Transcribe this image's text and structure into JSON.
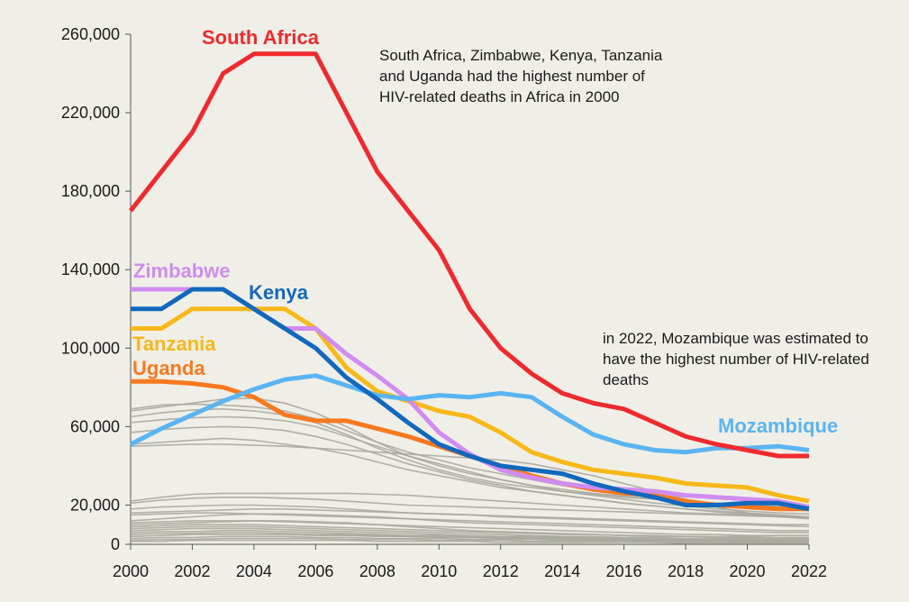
{
  "chart_data": {
    "type": "line",
    "x": [
      2000,
      2001,
      2002,
      2003,
      2004,
      2005,
      2006,
      2007,
      2008,
      2009,
      2010,
      2011,
      2012,
      2013,
      2014,
      2015,
      2016,
      2017,
      2018,
      2019,
      2020,
      2021,
      2022
    ],
    "ylim": [
      0,
      260000
    ],
    "xlim": [
      2000,
      2022
    ],
    "yticks": [
      {
        "value": 0,
        "label": "0"
      },
      {
        "value": 20000,
        "label": "20,000"
      },
      {
        "value": 60000,
        "label": "60,000"
      },
      {
        "value": 100000,
        "label": "100,000"
      },
      {
        "value": 140000,
        "label": "140,000"
      },
      {
        "value": 180000,
        "label": "180,000"
      },
      {
        "value": 220000,
        "label": "220,000"
      },
      {
        "value": 260000,
        "label": "260,000"
      }
    ],
    "xticks": [
      {
        "value": 2000,
        "label": "2000"
      },
      {
        "value": 2002,
        "label": "2002"
      },
      {
        "value": 2004,
        "label": "2004"
      },
      {
        "value": 2006,
        "label": "2006"
      },
      {
        "value": 2008,
        "label": "2008"
      },
      {
        "value": 2010,
        "label": "2010"
      },
      {
        "value": 2012,
        "label": "2012"
      },
      {
        "value": 2014,
        "label": "2014"
      },
      {
        "value": 2016,
        "label": "2016"
      },
      {
        "value": 2018,
        "label": "2018"
      },
      {
        "value": 2020,
        "label": "2020"
      },
      {
        "value": 2022,
        "label": "2022"
      }
    ],
    "background_series": [
      {
        "values": [
          69000,
          71000,
          71500,
          71000,
          70000,
          68000,
          64000,
          58000,
          52000,
          47000,
          43000,
          39000,
          36000,
          33000,
          30000,
          28000,
          26000,
          24000,
          22000,
          21000,
          20000,
          19000,
          18500
        ]
      },
      {
        "values": [
          68000,
          70000,
          72000,
          74000,
          74500,
          72000,
          67000,
          60000,
          52000,
          45000,
          40000,
          36000,
          33000,
          30000,
          28000,
          26000,
          24500,
          23000,
          22000,
          21000,
          20000,
          19500,
          19000
        ]
      },
      {
        "values": [
          65000,
          67000,
          68500,
          69000,
          68000,
          66000,
          62000,
          56000,
          49000,
          43000,
          38000,
          34000,
          31000,
          29000,
          27000,
          25500,
          24000,
          23000,
          22000,
          21000,
          20000,
          19000,
          18000
        ]
      },
      {
        "values": [
          62000,
          63500,
          64500,
          65000,
          64500,
          63000,
          60000,
          55000,
          50000,
          45000,
          41000,
          37000,
          33000,
          30000,
          27000,
          25000,
          23000,
          21000,
          19500,
          18000,
          17000,
          16000,
          15500
        ]
      },
      {
        "values": [
          57000,
          58500,
          59500,
          60000,
          59500,
          58000,
          55000,
          51000,
          46000,
          41000,
          37000,
          33000,
          30000,
          27000,
          25000,
          23000,
          21000,
          19500,
          18000,
          17000,
          16000,
          15000,
          14000
        ]
      },
      {
        "values": [
          51000,
          52000,
          53000,
          54000,
          53000,
          51000,
          49000,
          46000,
          42000,
          38000,
          35000,
          32000,
          29000,
          27000,
          25000,
          23000,
          21000,
          19500,
          18000,
          16500,
          15500,
          14500,
          14000
        ]
      },
      {
        "values": [
          50000,
          50500,
          51000,
          51000,
          50500,
          50000,
          49000,
          48000,
          47000,
          46000,
          45000,
          44000,
          43000,
          41000,
          38000,
          35000,
          31000,
          27000,
          23000,
          19000,
          16000,
          14000,
          13000
        ]
      },
      {
        "values": [
          22000,
          24000,
          25500,
          26000,
          26000,
          26000,
          26000,
          26000,
          25500,
          25000,
          24000,
          23000,
          22000,
          21000,
          20000,
          19000,
          18000,
          17000,
          16000,
          15500,
          15000,
          14500,
          14000
        ]
      },
      {
        "values": [
          21000,
          22500,
          23500,
          24000,
          24000,
          23500,
          23000,
          22000,
          21000,
          20000,
          19500,
          19000,
          18500,
          18000,
          17500,
          17000,
          16500,
          16000,
          15500,
          15000,
          14500,
          14000,
          13500
        ]
      },
      {
        "values": [
          18000,
          19000,
          19500,
          20000,
          20000,
          19500,
          19000,
          18000,
          17000,
          16000,
          15500,
          15000,
          14500,
          14000,
          13500,
          13000,
          12500,
          12000,
          11500,
          11000,
          10500,
          10000,
          10000
        ]
      },
      {
        "values": [
          16000,
          16500,
          17000,
          17500,
          18000,
          18000,
          17500,
          17000,
          16500,
          16000,
          15500,
          15000,
          14000,
          13500,
          13000,
          12500,
          12000,
          11500,
          11000,
          10500,
          10000,
          9500,
          9000
        ]
      },
      {
        "values": [
          15000,
          15500,
          16000,
          16000,
          15500,
          15000,
          14500,
          14000,
          13500,
          13000,
          12500,
          12000,
          11500,
          11000,
          10500,
          10000,
          9500,
          9000,
          8500,
          8000,
          7500,
          7000,
          7000
        ]
      },
      {
        "values": [
          12000,
          13000,
          14000,
          15000,
          15500,
          15500,
          15000,
          14500,
          14000,
          13000,
          12000,
          11000,
          10500,
          10000,
          9500,
          9000,
          8500,
          8000,
          7500,
          7000,
          6500,
          6000,
          6000
        ]
      },
      {
        "values": [
          11000,
          11500,
          12000,
          12000,
          12000,
          11500,
          11000,
          10500,
          10000,
          9500,
          9000,
          8500,
          8000,
          7500,
          7000,
          6500,
          6000,
          5500,
          5000,
          5000,
          4500,
          4500,
          4500
        ]
      },
      {
        "values": [
          10000,
          10500,
          11000,
          11500,
          12000,
          12000,
          11500,
          11000,
          10000,
          9000,
          8000,
          7000,
          6500,
          6000,
          5500,
          5000,
          4500,
          4000,
          4000,
          3500,
          3500,
          3000,
          3000
        ]
      },
      {
        "values": [
          9000,
          9500,
          10000,
          10000,
          10000,
          9500,
          9000,
          8500,
          8000,
          7500,
          7000,
          6500,
          6000,
          5500,
          5000,
          5000,
          4500,
          4500,
          4000,
          4000,
          4000,
          3500,
          3500
        ]
      },
      {
        "values": [
          8000,
          8500,
          9000,
          9000,
          9000,
          8500,
          8000,
          7500,
          7000,
          6500,
          6000,
          5500,
          5000,
          4500,
          4000,
          4000,
          3500,
          3500,
          3000,
          3000,
          3000,
          2500,
          2500
        ]
      },
      {
        "values": [
          7000,
          7500,
          8000,
          8000,
          8000,
          7500,
          7000,
          6500,
          6000,
          5500,
          5000,
          4500,
          4000,
          4000,
          3500,
          3500,
          3000,
          3000,
          2500,
          2500,
          2500,
          2000,
          2000
        ]
      },
      {
        "values": [
          6000,
          6500,
          6500,
          7000,
          7000,
          6500,
          6000,
          5500,
          5000,
          4500,
          4500,
          4000,
          4000,
          3500,
          3500,
          3000,
          3000,
          2500,
          2500,
          2000,
          2000,
          2000,
          2000
        ]
      },
      {
        "values": [
          5000,
          5500,
          5500,
          6000,
          6000,
          5500,
          5000,
          5000,
          4500,
          4000,
          4000,
          3500,
          3500,
          3000,
          3000,
          2500,
          2500,
          2000,
          2000,
          2000,
          1500,
          1500,
          1500
        ]
      },
      {
        "values": [
          4000,
          4500,
          5000,
          5000,
          5000,
          5000,
          4500,
          4500,
          4000,
          4000,
          3500,
          3500,
          3000,
          3000,
          2500,
          2500,
          2000,
          2000,
          2000,
          1500,
          1500,
          1500,
          1500
        ]
      },
      {
        "values": [
          3000,
          3500,
          3500,
          4000,
          4000,
          4000,
          3500,
          3500,
          3000,
          3000,
          3000,
          2500,
          2500,
          2500,
          2000,
          2000,
          2000,
          1500,
          1500,
          1500,
          1000,
          1000,
          1000
        ]
      },
      {
        "values": [
          2000,
          2500,
          2500,
          3000,
          3000,
          3000,
          3000,
          2500,
          2500,
          2500,
          2000,
          2000,
          2000,
          1500,
          1500,
          1500,
          1500,
          1000,
          1000,
          1000,
          1000,
          1000,
          1000
        ]
      },
      {
        "values": [
          1500,
          1500,
          2000,
          2000,
          2000,
          2000,
          2000,
          2000,
          1500,
          1500,
          1500,
          1500,
          1000,
          1000,
          1000,
          1000,
          1000,
          1000,
          500,
          500,
          500,
          500,
          500
        ]
      }
    ],
    "series": [
      {
        "name": "Uganda",
        "color": "#f7791f",
        "values": [
          83000,
          83000,
          82000,
          80000,
          75000,
          66000,
          63000,
          63000,
          59000,
          55000,
          50000,
          45000,
          40000,
          35000,
          31000,
          28000,
          26000,
          25000,
          22000,
          20000,
          19000,
          18000,
          18000
        ]
      },
      {
        "name": "Tanzania",
        "color": "#f7b81a",
        "values": [
          110000,
          110000,
          120000,
          120000,
          120000,
          120000,
          110000,
          90000,
          78000,
          73000,
          68000,
          65000,
          57000,
          47000,
          42000,
          38000,
          36000,
          34000,
          31000,
          30000,
          29000,
          25000,
          22000
        ]
      },
      {
        "name": "Zimbabwe",
        "color": "#d08cf0",
        "values": [
          130000,
          130000,
          130000,
          130000,
          120000,
          110000,
          110000,
          97000,
          86000,
          74000,
          57000,
          46000,
          38000,
          34000,
          31000,
          29000,
          28000,
          27000,
          25000,
          24000,
          23000,
          22000,
          19000
        ]
      },
      {
        "name": "Mozambique",
        "color": "#5ab4f2",
        "values": [
          51000,
          59000,
          66000,
          73000,
          79000,
          84000,
          86000,
          81000,
          76000,
          74000,
          76000,
          75000,
          77000,
          75000,
          65000,
          56000,
          51000,
          48000,
          47000,
          49000,
          49000,
          50000,
          48000
        ]
      },
      {
        "name": "Kenya",
        "color": "#1268bd",
        "values": [
          120000,
          120000,
          130000,
          130000,
          120000,
          110000,
          100000,
          85000,
          74000,
          62000,
          51000,
          45000,
          40000,
          38000,
          36000,
          31000,
          27000,
          24000,
          20000,
          20000,
          21000,
          21000,
          18000
        ]
      },
      {
        "name": "South Africa",
        "color": "#ee2a2f",
        "values": [
          170000,
          190000,
          210000,
          240000,
          250000,
          250000,
          250000,
          220000,
          190000,
          170000,
          150000,
          120000,
          100000,
          87000,
          77000,
          72000,
          69000,
          62000,
          55000,
          51000,
          48000,
          45000,
          45000
        ]
      }
    ],
    "series_labels": {
      "South Africa": "South Africa",
      "Zimbabwe": "Zimbabwe",
      "Kenya": "Kenya",
      "Tanzania": "Tanzania",
      "Uganda": "Uganda",
      "Mozambique": "Mozambique"
    },
    "annotations": [
      "South Africa, Zimbabwe, Kenya, Tanzania and Uganda had the highest number of HIV-related deaths in Africa in 2000",
      "in 2022, Mozambique was estimated to have the highest number of HIV-related deaths"
    ],
    "background_color": "#f0efe7",
    "background_line_color": "#a9a8a0",
    "grid": false
  }
}
